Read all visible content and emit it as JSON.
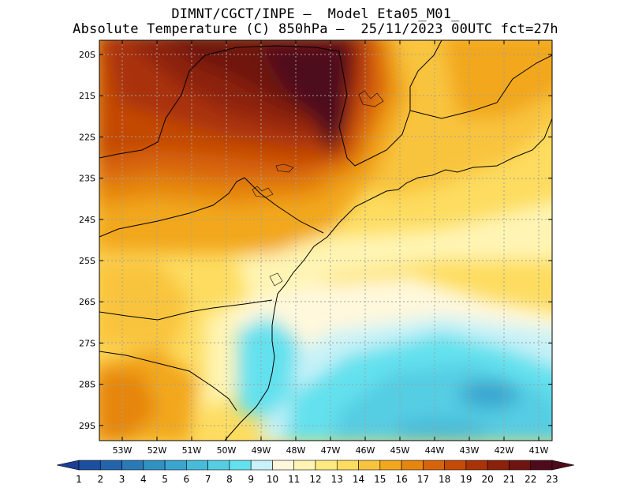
{
  "header": {
    "line1": "DIMNT/CGCT/INPE –  Model Eta05_M01_",
    "line2": "Absolute Temperature (C) 850hPa –  25/11/2023 00UTC fct=27h"
  },
  "map": {
    "lat_labels": [
      "20S",
      "21S",
      "22S",
      "23S",
      "24S",
      "25S",
      "26S",
      "27S",
      "28S",
      "29S"
    ],
    "lon_labels": [
      "53W",
      "52W",
      "51W",
      "50W",
      "49W",
      "48W",
      "47W",
      "46W",
      "45W",
      "44W",
      "43W",
      "42W",
      "41W"
    ]
  },
  "colorbar": {
    "labels": [
      "1",
      "2",
      "3",
      "4",
      "5",
      "6",
      "7",
      "8",
      "9",
      "10",
      "11",
      "12",
      "13",
      "14",
      "15",
      "16",
      "17",
      "18",
      "19",
      "20",
      "21",
      "22",
      "23"
    ],
    "colors": [
      "#1c3f94",
      "#1d4fa0",
      "#2364ad",
      "#2a7ab8",
      "#3191c3",
      "#3aa6cf",
      "#47bbda",
      "#55cde3",
      "#63e1ee",
      "#c8f2f8",
      "#fff8dc",
      "#fff4b3",
      "#feea80",
      "#fddc60",
      "#f9c43c",
      "#f2a71e",
      "#e6860f",
      "#d7640a",
      "#c44a06",
      "#a93307",
      "#8c2109",
      "#701411",
      "#4e0b1b"
    ]
  }
}
